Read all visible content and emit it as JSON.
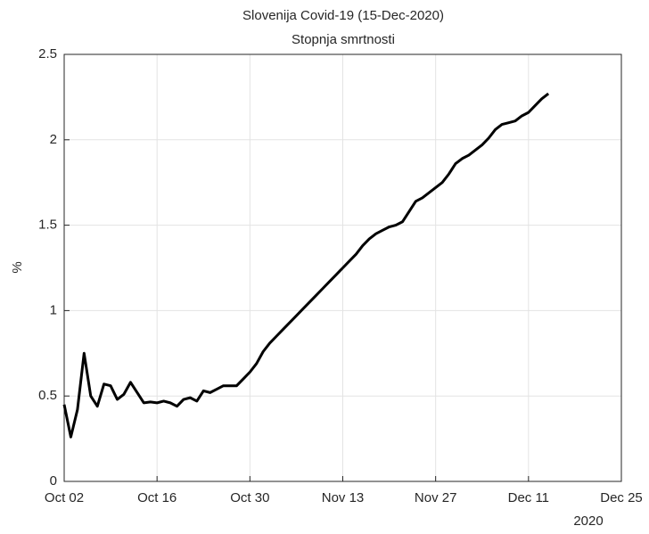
{
  "chart_data": {
    "type": "line",
    "title": "Slovenija Covid-19 (15-Dec-2020)",
    "subtitle": "Stopnja smrtnosti",
    "y_label": "%",
    "x_year_label": "2020",
    "x": [
      "2020-10-02",
      "2020-10-03",
      "2020-10-04",
      "2020-10-05",
      "2020-10-06",
      "2020-10-07",
      "2020-10-08",
      "2020-10-09",
      "2020-10-10",
      "2020-10-11",
      "2020-10-12",
      "2020-10-13",
      "2020-10-14",
      "2020-10-15",
      "2020-10-16",
      "2020-10-17",
      "2020-10-18",
      "2020-10-19",
      "2020-10-20",
      "2020-10-21",
      "2020-10-22",
      "2020-10-23",
      "2020-10-24",
      "2020-10-25",
      "2020-10-26",
      "2020-10-27",
      "2020-10-28",
      "2020-10-29",
      "2020-10-30",
      "2020-10-31",
      "2020-11-01",
      "2020-11-02",
      "2020-11-03",
      "2020-11-04",
      "2020-11-05",
      "2020-11-06",
      "2020-11-07",
      "2020-11-08",
      "2020-11-09",
      "2020-11-10",
      "2020-11-11",
      "2020-11-12",
      "2020-11-13",
      "2020-11-14",
      "2020-11-15",
      "2020-11-16",
      "2020-11-17",
      "2020-11-18",
      "2020-11-19",
      "2020-11-20",
      "2020-11-21",
      "2020-11-22",
      "2020-11-23",
      "2020-11-24",
      "2020-11-25",
      "2020-11-26",
      "2020-11-27",
      "2020-11-28",
      "2020-11-29",
      "2020-11-30",
      "2020-12-01",
      "2020-12-02",
      "2020-12-03",
      "2020-12-04",
      "2020-12-05",
      "2020-12-06",
      "2020-12-07",
      "2020-12-08",
      "2020-12-09",
      "2020-12-10",
      "2020-12-11",
      "2020-12-12",
      "2020-12-13",
      "2020-12-14"
    ],
    "series": [
      {
        "color": "#000000",
        "values": [
          0.45,
          0.26,
          0.42,
          0.75,
          0.5,
          0.44,
          0.57,
          0.56,
          0.48,
          0.51,
          0.58,
          0.52,
          0.46,
          0.465,
          0.46,
          0.47,
          0.46,
          0.44,
          0.48,
          0.49,
          0.47,
          0.53,
          0.52,
          0.54,
          0.56,
          0.56,
          0.56,
          0.6,
          0.64,
          0.69,
          0.76,
          0.81,
          0.85,
          0.89,
          0.93,
          0.97,
          1.01,
          1.05,
          1.09,
          1.13,
          1.17,
          1.21,
          1.25,
          1.29,
          1.33,
          1.38,
          1.42,
          1.45,
          1.47,
          1.49,
          1.5,
          1.52,
          1.58,
          1.64,
          1.66,
          1.69,
          1.72,
          1.75,
          1.8,
          1.86,
          1.89,
          1.91,
          1.94,
          1.97,
          2.01,
          2.06,
          2.09,
          2.1,
          2.11,
          2.14,
          2.16,
          2.2,
          2.24,
          2.27
        ]
      }
    ],
    "xlim": [
      "2020-10-02",
      "2020-12-25"
    ],
    "xticks": [
      {
        "value": "2020-10-02",
        "label": "Oct 02"
      },
      {
        "value": "2020-10-16",
        "label": "Oct 16"
      },
      {
        "value": "2020-10-30",
        "label": "Oct 30"
      },
      {
        "value": "2020-11-13",
        "label": "Nov 13"
      },
      {
        "value": "2020-11-27",
        "label": "Nov 27"
      },
      {
        "value": "2020-12-11",
        "label": "Dec 11"
      },
      {
        "value": "2020-12-25",
        "label": "Dec 25"
      }
    ],
    "ylim": [
      0,
      2.5
    ],
    "yticks": [
      0,
      0.5,
      1,
      1.5,
      2,
      2.5
    ],
    "grid": true
  }
}
